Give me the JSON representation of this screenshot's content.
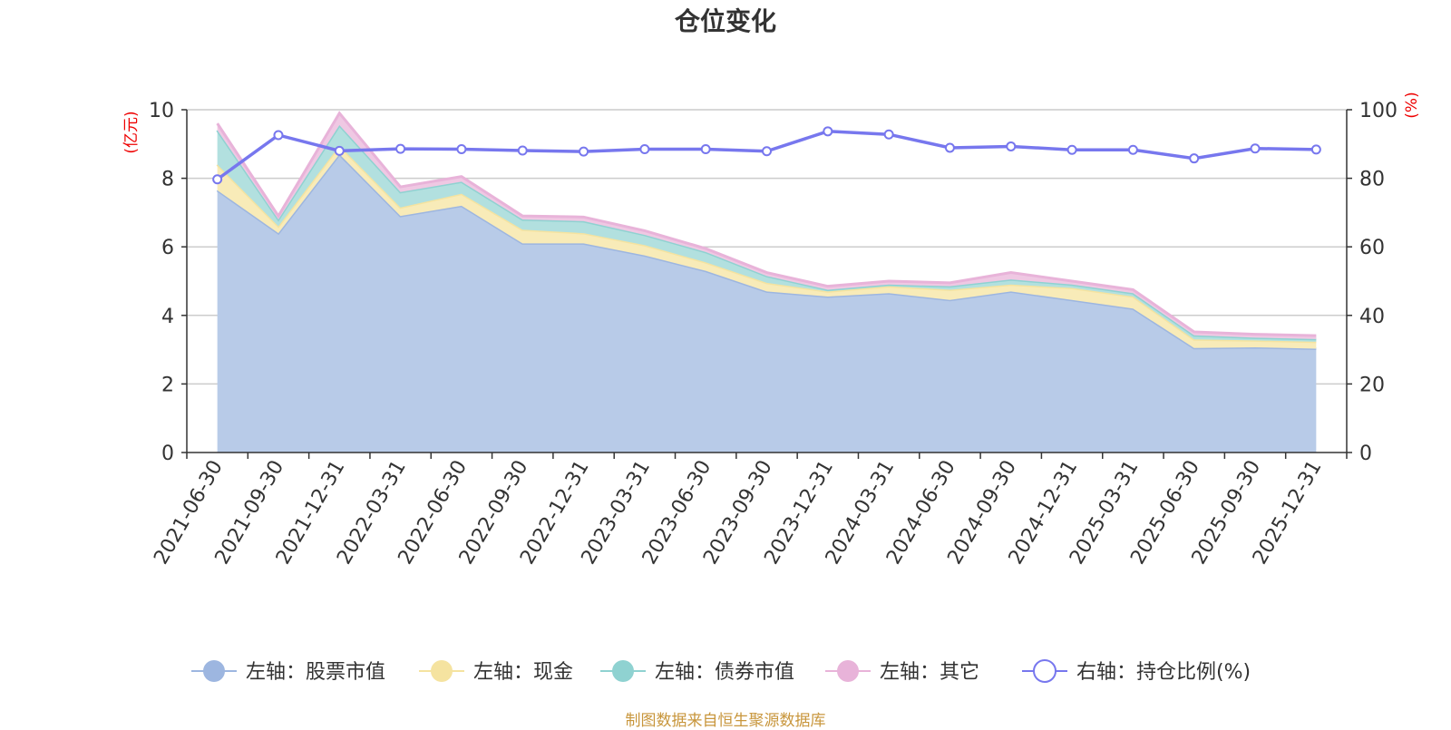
{
  "chart_data": {
    "type": "area",
    "title": "仓位变化",
    "y_left_label": "(亿元)",
    "y_right_label": "(%)",
    "y_left_lim": [
      0,
      10
    ],
    "y_left_ticks": [
      "0",
      "2",
      "4",
      "6",
      "8",
      "10"
    ],
    "y_right_lim": [
      0,
      100
    ],
    "y_right_ticks": [
      "0",
      "20",
      "40",
      "60",
      "80",
      "100"
    ],
    "x": [
      "2021-06-30",
      "2021-09-30",
      "2021-12-31",
      "2022-03-31",
      "2022-06-30",
      "2022-09-30",
      "2022-12-31",
      "2023-03-31",
      "2023-06-30",
      "2023-09-30",
      "2023-12-31",
      "2024-03-31",
      "2024-06-30",
      "2024-09-30",
      "2024-12-31",
      "2025-03-31",
      "2025-06-30",
      "2025-09-30",
      "2025-12-31"
    ],
    "stacked": true,
    "grid": true,
    "legend_position": "bottom",
    "series": [
      {
        "name": "左轴：股票市值",
        "axis": "left",
        "kind": "area",
        "color": "#9db6e0",
        "fill": "#b8cbe8",
        "values": [
          7.65,
          6.4,
          8.7,
          6.9,
          7.2,
          6.1,
          6.1,
          5.75,
          5.3,
          4.7,
          4.55,
          4.65,
          4.45,
          4.7,
          4.45,
          4.2,
          3.05,
          3.07,
          3.03
        ]
      },
      {
        "name": "左轴：现金",
        "axis": "left",
        "kind": "area",
        "color": "#f5e3a0",
        "fill": "#f8ebb8",
        "values": [
          0.75,
          0.2,
          0.25,
          0.25,
          0.35,
          0.4,
          0.3,
          0.3,
          0.25,
          0.25,
          0.15,
          0.2,
          0.3,
          0.2,
          0.35,
          0.35,
          0.25,
          0.2,
          0.2
        ]
      },
      {
        "name": "左轴：债券市值",
        "axis": "left",
        "kind": "area",
        "color": "#8fd2d1",
        "fill": "#b2e0df",
        "values": [
          1.0,
          0.2,
          0.6,
          0.45,
          0.35,
          0.3,
          0.35,
          0.3,
          0.3,
          0.2,
          0.05,
          0.05,
          0.1,
          0.15,
          0.1,
          0.1,
          0.12,
          0.08,
          0.08
        ]
      },
      {
        "name": "左轴：其它",
        "axis": "left",
        "kind": "area",
        "color": "#e8b3d9",
        "fill": "#efc8e3",
        "values": [
          0.2,
          0.1,
          0.35,
          0.15,
          0.15,
          0.1,
          0.12,
          0.12,
          0.1,
          0.1,
          0.1,
          0.1,
          0.1,
          0.2,
          0.1,
          0.1,
          0.1,
          0.1,
          0.1
        ]
      },
      {
        "name": "右轴：持仓比例(%)",
        "axis": "right",
        "kind": "line",
        "color": "#7777ee",
        "values": [
          79.7,
          92.6,
          88.0,
          88.6,
          88.5,
          88.1,
          87.8,
          88.5,
          88.5,
          87.9,
          93.7,
          92.8,
          88.9,
          89.3,
          88.3,
          88.3,
          85.8,
          88.7,
          88.4
        ]
      }
    ]
  },
  "source_note": "制图数据来自恒生聚源数据库"
}
